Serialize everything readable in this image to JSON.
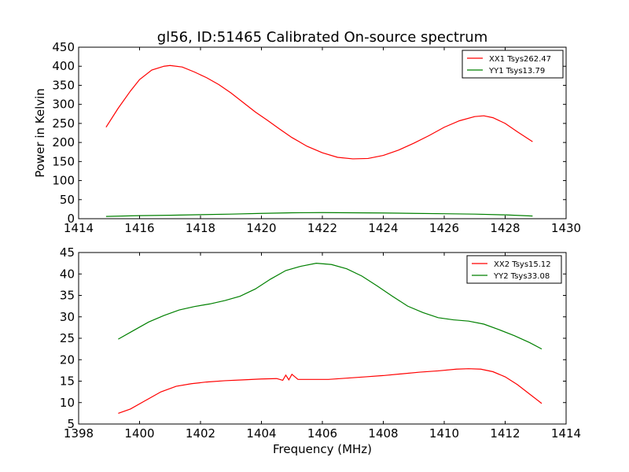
{
  "chart_data": [
    {
      "type": "line",
      "title": "gl56, ID:51465 Calibrated On-source spectrum",
      "xlabel": "",
      "ylabel": "Power in Kelvin",
      "xlim": [
        1414,
        1430
      ],
      "ylim": [
        0,
        450
      ],
      "xticks": [
        1414,
        1416,
        1418,
        1420,
        1422,
        1424,
        1426,
        1428,
        1430
      ],
      "yticks": [
        0,
        50,
        100,
        150,
        200,
        250,
        300,
        350,
        400,
        450
      ],
      "legend": "top-right",
      "series": [
        {
          "name": "XX1 Tsys262.47",
          "color": "#ff0000",
          "x": [
            1414.9,
            1415.3,
            1415.7,
            1416.0,
            1416.4,
            1416.8,
            1417.0,
            1417.4,
            1417.8,
            1418.2,
            1418.6,
            1419.0,
            1419.4,
            1419.8,
            1420.2,
            1420.6,
            1421.0,
            1421.5,
            1422.0,
            1422.5,
            1423.0,
            1423.5,
            1424.0,
            1424.5,
            1425.0,
            1425.5,
            1426.0,
            1426.5,
            1427.0,
            1427.3,
            1427.6,
            1428.0,
            1428.4,
            1428.9
          ],
          "y": [
            240,
            290,
            335,
            365,
            390,
            400,
            402,
            398,
            385,
            370,
            352,
            330,
            305,
            280,
            258,
            235,
            213,
            190,
            173,
            161,
            157,
            158,
            166,
            180,
            198,
            218,
            240,
            257,
            268,
            270,
            265,
            250,
            228,
            202
          ]
        },
        {
          "name": "YY1 Tsys13.79",
          "color": "#008000",
          "x": [
            1414.9,
            1416.0,
            1417.0,
            1418.0,
            1419.0,
            1420.0,
            1421.0,
            1422.0,
            1423.0,
            1424.0,
            1425.0,
            1426.0,
            1427.0,
            1428.0,
            1428.9
          ],
          "y": [
            6,
            8,
            9,
            10.5,
            12,
            14,
            15.5,
            16,
            15.5,
            15,
            14,
            13,
            12,
            10,
            7
          ]
        }
      ]
    },
    {
      "type": "line",
      "title": "",
      "xlabel": "Frequency (MHz)",
      "ylabel": "",
      "xlim": [
        1398,
        1414
      ],
      "ylim": [
        5,
        45
      ],
      "xticks": [
        1398,
        1400,
        1402,
        1404,
        1406,
        1408,
        1410,
        1412,
        1414
      ],
      "yticks": [
        5,
        10,
        15,
        20,
        25,
        30,
        35,
        40,
        45
      ],
      "legend": "top-right",
      "series": [
        {
          "name": "XX2 Tsys15.12",
          "color": "#ff0000",
          "x": [
            1399.3,
            1399.7,
            1400.2,
            1400.7,
            1401.2,
            1401.7,
            1402.2,
            1402.8,
            1403.4,
            1404.0,
            1404.5,
            1404.7,
            1404.8,
            1404.9,
            1405.0,
            1405.2,
            1405.6,
            1406.2,
            1406.8,
            1407.4,
            1408.0,
            1408.6,
            1409.2,
            1409.8,
            1410.4,
            1410.8,
            1411.2,
            1411.6,
            1412.0,
            1412.4,
            1412.8,
            1413.2
          ],
          "y": [
            7.5,
            8.5,
            10.5,
            12.5,
            13.8,
            14.4,
            14.8,
            15.1,
            15.3,
            15.5,
            15.6,
            15.2,
            16.4,
            15.3,
            16.6,
            15.4,
            15.4,
            15.4,
            15.7,
            16.0,
            16.3,
            16.7,
            17.1,
            17.4,
            17.8,
            17.9,
            17.8,
            17.2,
            16.0,
            14.2,
            12.0,
            9.8
          ]
        },
        {
          "name": "YY2 Tsys33.08",
          "color": "#008000",
          "x": [
            1399.3,
            1399.8,
            1400.3,
            1400.8,
            1401.3,
            1401.8,
            1402.3,
            1402.8,
            1403.3,
            1403.8,
            1404.3,
            1404.8,
            1405.3,
            1405.8,
            1406.3,
            1406.8,
            1407.3,
            1407.8,
            1408.3,
            1408.8,
            1409.3,
            1409.8,
            1410.3,
            1410.8,
            1411.3,
            1411.8,
            1412.3,
            1412.8,
            1413.2
          ],
          "y": [
            24.8,
            26.8,
            28.8,
            30.3,
            31.6,
            32.4,
            33.0,
            33.8,
            34.8,
            36.5,
            38.8,
            40.8,
            41.8,
            42.5,
            42.2,
            41.2,
            39.5,
            37.2,
            34.8,
            32.5,
            31.0,
            29.8,
            29.3,
            29.0,
            28.3,
            27.0,
            25.6,
            24.0,
            22.5
          ]
        }
      ]
    }
  ]
}
